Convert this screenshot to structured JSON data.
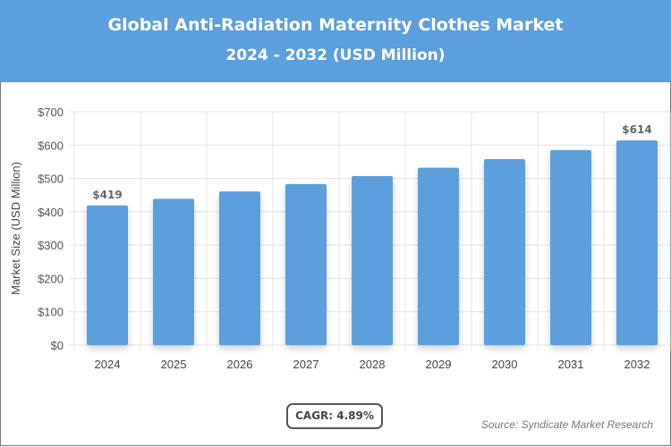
{
  "header": {
    "title": "Global Anti-Radiation Maternity Clothes Market",
    "subtitle": "2024 - 2032 (USD Million)"
  },
  "chart_data": {
    "type": "bar",
    "title": "Global Anti-Radiation Maternity Clothes Market",
    "subtitle": "2024 - 2032 (USD Million)",
    "categories": [
      "2024",
      "2025",
      "2026",
      "2027",
      "2028",
      "2029",
      "2030",
      "2031",
      "2032"
    ],
    "values": [
      419,
      439,
      461,
      483,
      507,
      532,
      558,
      585,
      614
    ],
    "data_labels": {
      "0": "$419",
      "8": "$614"
    },
    "ylabel": "Market Size (USD Million)",
    "xlabel": "",
    "ylim": [
      0,
      700
    ],
    "yticks": [
      "$0",
      "$100",
      "$200",
      "$300",
      "$400",
      "$500",
      "$600",
      "$700"
    ],
    "grid": true,
    "bar_color": "#5b9fdc"
  },
  "footer": {
    "cagr": "CAGR: 4.89%",
    "source": "Source: Syndicate Market Research"
  }
}
